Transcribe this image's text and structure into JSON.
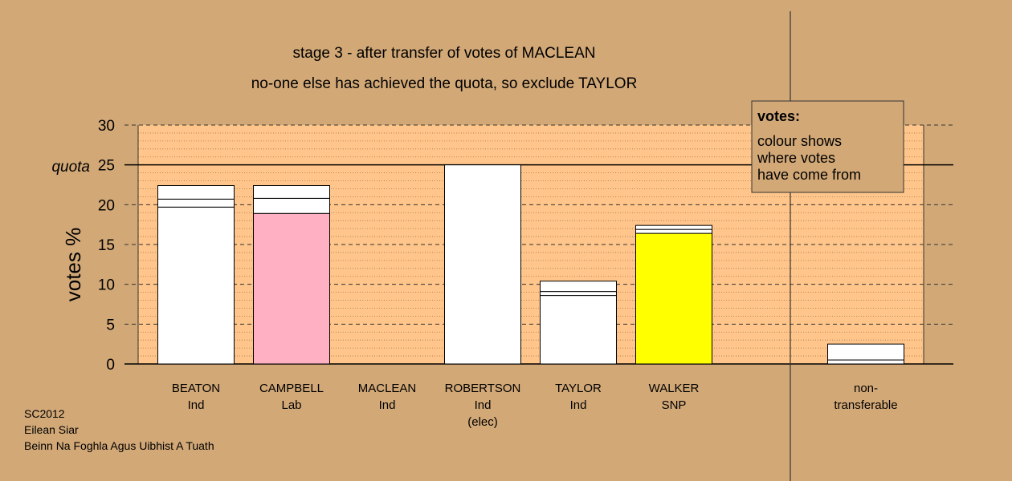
{
  "chart_data": {
    "type": "bar",
    "stacked": true,
    "title": "stage 3 - after transfer of votes of MACLEAN",
    "subtitle": "no-one else has achieved the quota, so exclude TAYLOR",
    "ylabel": "votes %",
    "ylim": [
      0,
      30
    ],
    "yticks": [
      "0",
      "5",
      "10",
      "15",
      "20",
      "25",
      "30"
    ],
    "quota": {
      "label": "quota",
      "value": 25
    },
    "categories": [
      {
        "lines": [
          "BEATON",
          "Ind"
        ],
        "segments": [
          {
            "value": 19.7,
            "color": "#ffffff"
          },
          {
            "value": 1.0,
            "color": "#ffffff"
          },
          {
            "value": 1.7,
            "color": "#ffffff"
          }
        ]
      },
      {
        "lines": [
          "CAMPBELL",
          "Lab"
        ],
        "segments": [
          {
            "value": 18.9,
            "color": "#ffb1c3"
          },
          {
            "value": 1.9,
            "color": "#ffffff"
          },
          {
            "value": 1.6,
            "color": "#ffffff"
          }
        ]
      },
      {
        "lines": [
          "MACLEAN",
          "Ind"
        ],
        "segments": []
      },
      {
        "lines": [
          "ROBERTSON",
          "Ind",
          "(elec)"
        ],
        "segments": [
          {
            "value": 25.0,
            "color": "#ffffff"
          }
        ]
      },
      {
        "lines": [
          "TAYLOR",
          "Ind"
        ],
        "segments": [
          {
            "value": 8.6,
            "color": "#ffffff"
          },
          {
            "value": 0.5,
            "color": "#ffffff"
          },
          {
            "value": 1.3,
            "color": "#ffffff"
          }
        ]
      },
      {
        "lines": [
          "WALKER",
          "SNP"
        ],
        "segments": [
          {
            "value": 16.4,
            "color": "#ffff00"
          },
          {
            "value": 0.5,
            "color": "#ffffff"
          },
          {
            "value": 0.5,
            "color": "#ffffff"
          }
        ]
      }
    ],
    "nontransferable": {
      "lines": [
        "non-",
        "transferable"
      ],
      "segments": [
        {
          "value": 0.5,
          "color": "#ffffff"
        },
        {
          "value": 2.0,
          "color": "#ffffff"
        }
      ]
    },
    "legend": {
      "position": "top-right",
      "title": "votes:",
      "lines": [
        "colour shows",
        "where votes",
        "have come from"
      ]
    },
    "grid": true
  },
  "footer": {
    "line1": "SC2012",
    "line2": "Eilean Siar",
    "line3": "Beinn Na Foghla Agus Uibhist A Tuath"
  },
  "colors": {
    "background": "#d2a877",
    "plot_area": "#ffc58a",
    "gridline": "#a07850"
  }
}
